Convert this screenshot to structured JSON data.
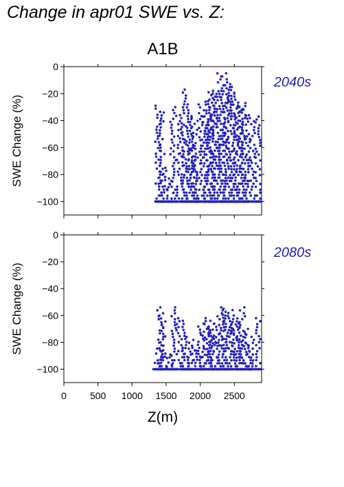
{
  "page_title": "Change in apr01 SWE vs. Z:",
  "chart_data": {
    "type": "scatter",
    "scenario": "A1B",
    "xlabel": "Z(m)",
    "ylabel": "SWE Change (%)",
    "xlim": [
      0,
      2900
    ],
    "ylim": [
      -110,
      0
    ],
    "xticks": [
      0,
      500,
      1000,
      1500,
      2000,
      2500
    ],
    "yticks": [
      0,
      -20,
      -40,
      -60,
      -80,
      -100
    ],
    "point_color": "#2222bb",
    "grid": false,
    "panels": [
      {
        "period": "2040s",
        "series": [
          {
            "x": 1380,
            "y_min": -100,
            "y_max": -29
          },
          {
            "x": 1430,
            "y_min": -100,
            "y_max": -34
          },
          {
            "x": 1470,
            "y_min": -100,
            "y_max": -75
          },
          {
            "x": 1560,
            "y_min": -100,
            "y_max": -83
          },
          {
            "x": 1600,
            "y_min": -100,
            "y_max": -30
          },
          {
            "x": 1700,
            "y_min": -100,
            "y_max": -36
          },
          {
            "x": 1750,
            "y_min": -100,
            "y_max": -42
          },
          {
            "x": 1790,
            "y_min": -100,
            "y_max": -17
          },
          {
            "x": 1850,
            "y_min": -100,
            "y_max": -28
          },
          {
            "x": 1880,
            "y_min": -100,
            "y_max": -62
          },
          {
            "x": 1920,
            "y_min": -100,
            "y_max": -38
          },
          {
            "x": 1960,
            "y_min": -100,
            "y_max": -48
          },
          {
            "x": 2020,
            "y_min": -100,
            "y_max": -28
          },
          {
            "x": 2080,
            "y_min": -100,
            "y_max": -37
          },
          {
            "x": 2110,
            "y_min": -100,
            "y_max": -26
          },
          {
            "x": 2140,
            "y_min": -100,
            "y_max": -19
          },
          {
            "x": 2170,
            "y_min": -100,
            "y_max": -20
          },
          {
            "x": 2200,
            "y_min": -100,
            "y_max": -18
          },
          {
            "x": 2240,
            "y_min": -100,
            "y_max": -34
          },
          {
            "x": 2300,
            "y_min": -100,
            "y_max": -5
          },
          {
            "x": 2330,
            "y_min": -100,
            "y_max": -18
          },
          {
            "x": 2370,
            "y_min": -100,
            "y_max": -5
          },
          {
            "x": 2410,
            "y_min": -100,
            "y_max": -13
          },
          {
            "x": 2450,
            "y_min": -100,
            "y_max": -15
          },
          {
            "x": 2500,
            "y_min": -100,
            "y_max": -26
          },
          {
            "x": 2540,
            "y_min": -100,
            "y_max": -20
          },
          {
            "x": 2580,
            "y_min": -100,
            "y_max": -30
          },
          {
            "x": 2620,
            "y_min": -100,
            "y_max": -27
          },
          {
            "x": 2660,
            "y_min": -100,
            "y_max": -32
          },
          {
            "x": 2700,
            "y_min": -100,
            "y_max": -50
          },
          {
            "x": 2760,
            "y_min": -100,
            "y_max": -36
          },
          {
            "x": 2860,
            "y_min": -100,
            "y_max": -37
          }
        ]
      },
      {
        "period": "2080s",
        "series": [
          {
            "x": 1380,
            "y_min": -100,
            "y_max": -86
          },
          {
            "x": 1410,
            "y_min": -100,
            "y_max": -54
          },
          {
            "x": 1440,
            "y_min": -100,
            "y_max": -60
          },
          {
            "x": 1470,
            "y_min": -100,
            "y_max": -86
          },
          {
            "x": 1560,
            "y_min": -100,
            "y_max": -90
          },
          {
            "x": 1600,
            "y_min": -100,
            "y_max": -54
          },
          {
            "x": 1700,
            "y_min": -100,
            "y_max": -62
          },
          {
            "x": 1750,
            "y_min": -100,
            "y_max": -64
          },
          {
            "x": 1790,
            "y_min": -100,
            "y_max": -84
          },
          {
            "x": 1850,
            "y_min": -100,
            "y_max": -76
          },
          {
            "x": 1900,
            "y_min": -100,
            "y_max": -84
          },
          {
            "x": 1960,
            "y_min": -100,
            "y_max": -86
          },
          {
            "x": 2010,
            "y_min": -100,
            "y_max": -66
          },
          {
            "x": 2060,
            "y_min": -100,
            "y_max": -70
          },
          {
            "x": 2100,
            "y_min": -100,
            "y_max": -62
          },
          {
            "x": 2140,
            "y_min": -100,
            "y_max": -70
          },
          {
            "x": 2170,
            "y_min": -100,
            "y_max": -66
          },
          {
            "x": 2200,
            "y_min": -100,
            "y_max": -64
          },
          {
            "x": 2230,
            "y_min": -100,
            "y_max": -74
          },
          {
            "x": 2300,
            "y_min": -100,
            "y_max": -54
          },
          {
            "x": 2330,
            "y_min": -100,
            "y_max": -60
          },
          {
            "x": 2370,
            "y_min": -100,
            "y_max": -55
          },
          {
            "x": 2410,
            "y_min": -100,
            "y_max": -62
          },
          {
            "x": 2450,
            "y_min": -100,
            "y_max": -56
          },
          {
            "x": 2500,
            "y_min": -100,
            "y_max": -70
          },
          {
            "x": 2540,
            "y_min": -100,
            "y_max": -60
          },
          {
            "x": 2580,
            "y_min": -100,
            "y_max": -66
          },
          {
            "x": 2620,
            "y_min": -100,
            "y_max": -54
          },
          {
            "x": 2660,
            "y_min": -100,
            "y_max": -70
          },
          {
            "x": 2700,
            "y_min": -100,
            "y_max": -82
          },
          {
            "x": 2760,
            "y_min": -100,
            "y_max": -76
          },
          {
            "x": 2860,
            "y_min": -100,
            "y_max": -62
          }
        ]
      }
    ]
  }
}
